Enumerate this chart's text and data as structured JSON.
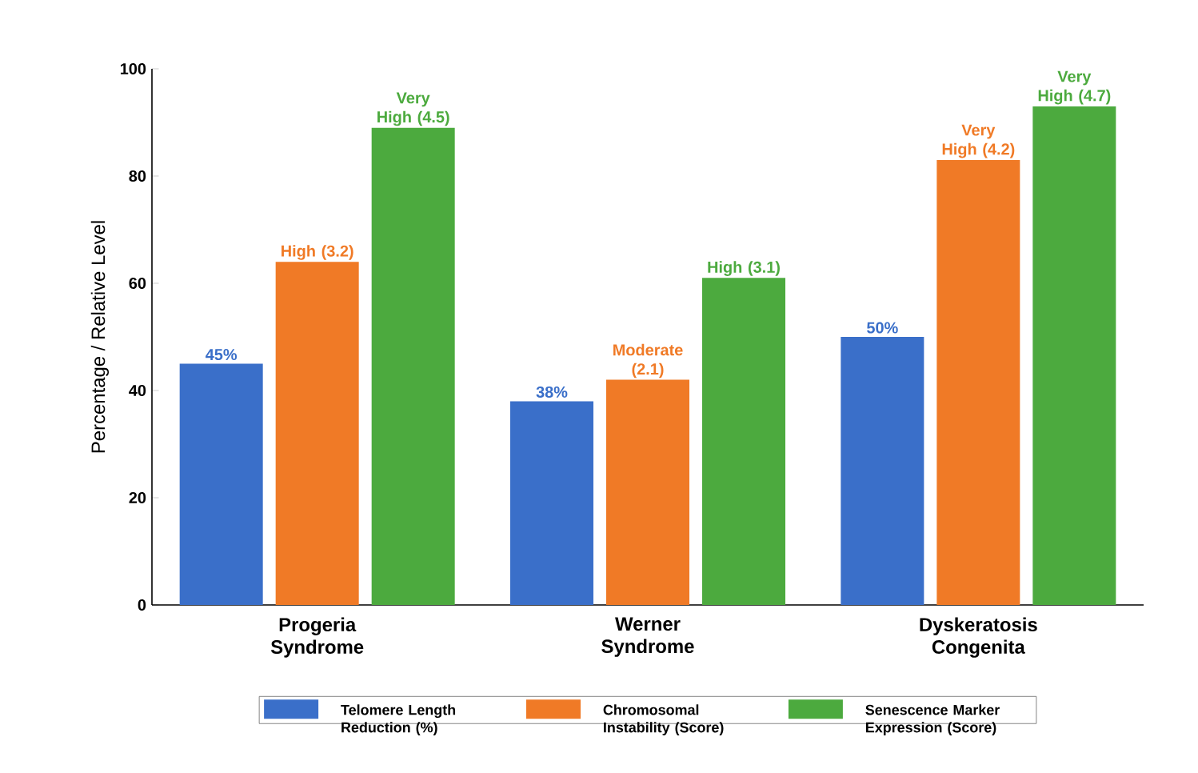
{
  "chart_data": {
    "type": "bar",
    "ylabel": "Percentage / Relative Level",
    "categories": [
      "Progeria Syndrome",
      "Werner Syndrome",
      "Dyskeratosis Congenita"
    ],
    "series": [
      {
        "name": "Telomere Length Reduction (%)",
        "color": "#3a6fc9",
        "values": [
          45,
          38,
          50
        ],
        "value_labels": [
          "45%",
          "38%",
          "50%"
        ]
      },
      {
        "name": "Chromosomal Instability (Score)",
        "color": "#f07a26",
        "values": [
          64,
          42,
          83
        ]
      },
      {
        "name": "Senescence Marker Expression (Score)",
        "color": "#4caa3e",
        "values": [
          89,
          61,
          93
        ]
      }
    ],
    "annotations": [
      "High (3.2)",
      "Moderate (2.1)",
      "Very High (4.2)",
      "Very High (4.5)",
      "High (3.1)",
      "Very High (4.7)"
    ],
    "ylim": [
      0,
      100
    ],
    "yticks": [
      0,
      20,
      40,
      60,
      80,
      100
    ],
    "grid": false,
    "legend": "bottom"
  }
}
